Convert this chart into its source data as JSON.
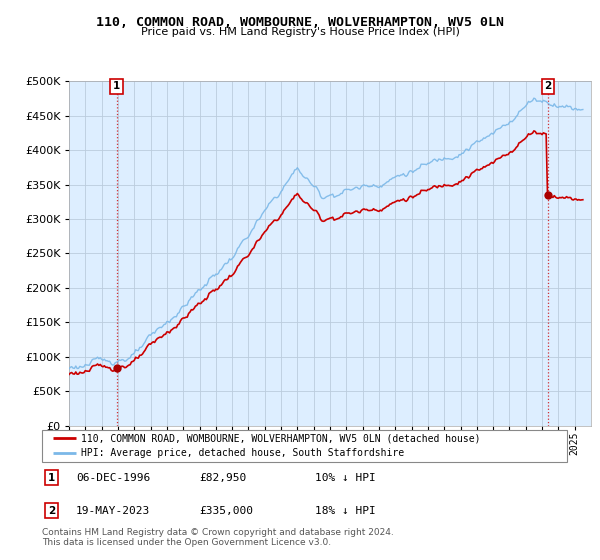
{
  "title": "110, COMMON ROAD, WOMBOURNE, WOLVERHAMPTON, WV5 0LN",
  "subtitle": "Price paid vs. HM Land Registry's House Price Index (HPI)",
  "ylim": [
    0,
    500000
  ],
  "yticks": [
    0,
    50000,
    100000,
    150000,
    200000,
    250000,
    300000,
    350000,
    400000,
    450000,
    500000
  ],
  "ytick_labels": [
    "£0",
    "£50K",
    "£100K",
    "£150K",
    "£200K",
    "£250K",
    "£300K",
    "£350K",
    "£400K",
    "£450K",
    "£500K"
  ],
  "hpi_color": "#7bb8e8",
  "price_color": "#cc0000",
  "marker_color": "#aa0000",
  "annotation_box_color": "#cc0000",
  "sale1_date": "06-DEC-1996",
  "sale1_price": 82950,
  "sale1_t": 1996.917,
  "sale1_label": "1",
  "sale1_hpi_pct": "10% ↓ HPI",
  "sale2_date": "19-MAY-2023",
  "sale2_price": 335000,
  "sale2_t": 2023.375,
  "sale2_label": "2",
  "sale2_hpi_pct": "18% ↓ HPI",
  "legend_line1": "110, COMMON ROAD, WOMBOURNE, WOLVERHAMPTON, WV5 0LN (detached house)",
  "legend_line2": "HPI: Average price, detached house, South Staffordshire",
  "footer": "Contains HM Land Registry data © Crown copyright and database right 2024.\nThis data is licensed under the Open Government Licence v3.0.",
  "bg_color": "#ddeeff",
  "grid_color": "#bbccdd",
  "x_start_year": 1994,
  "x_end_year": 2026
}
